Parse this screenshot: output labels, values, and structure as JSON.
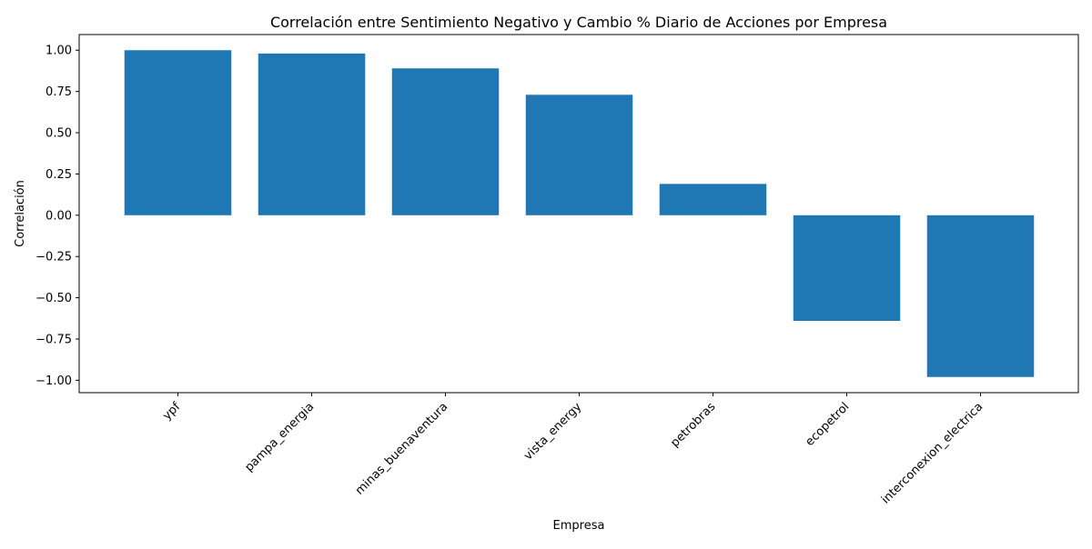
{
  "chart_data": {
    "type": "bar",
    "title": "Correlación entre Sentimiento Negativo y Cambio % Diario de Acciones por Empresa",
    "xlabel": "Empresa",
    "ylabel": "Correlación",
    "categories": [
      "ypf",
      "pampa_energia",
      "minas_buenaventura",
      "vista_energy",
      "petrobras",
      "ecopetrol",
      "interconexion_electrica"
    ],
    "values": [
      1.0,
      0.98,
      0.89,
      0.73,
      0.19,
      -0.64,
      -0.98
    ],
    "ylim": [
      -1.075,
      1.095
    ],
    "yticks": [
      1.0,
      0.75,
      0.5,
      0.25,
      0.0,
      -0.25,
      -0.5,
      -0.75,
      -1.0
    ],
    "ytick_labels": [
      "1.00",
      "0.75",
      "0.50",
      "0.25",
      "0.00",
      "−0.25",
      "−0.50",
      "−0.75",
      "−1.00"
    ],
    "grid": false,
    "bar_color": "#1f77b4"
  }
}
